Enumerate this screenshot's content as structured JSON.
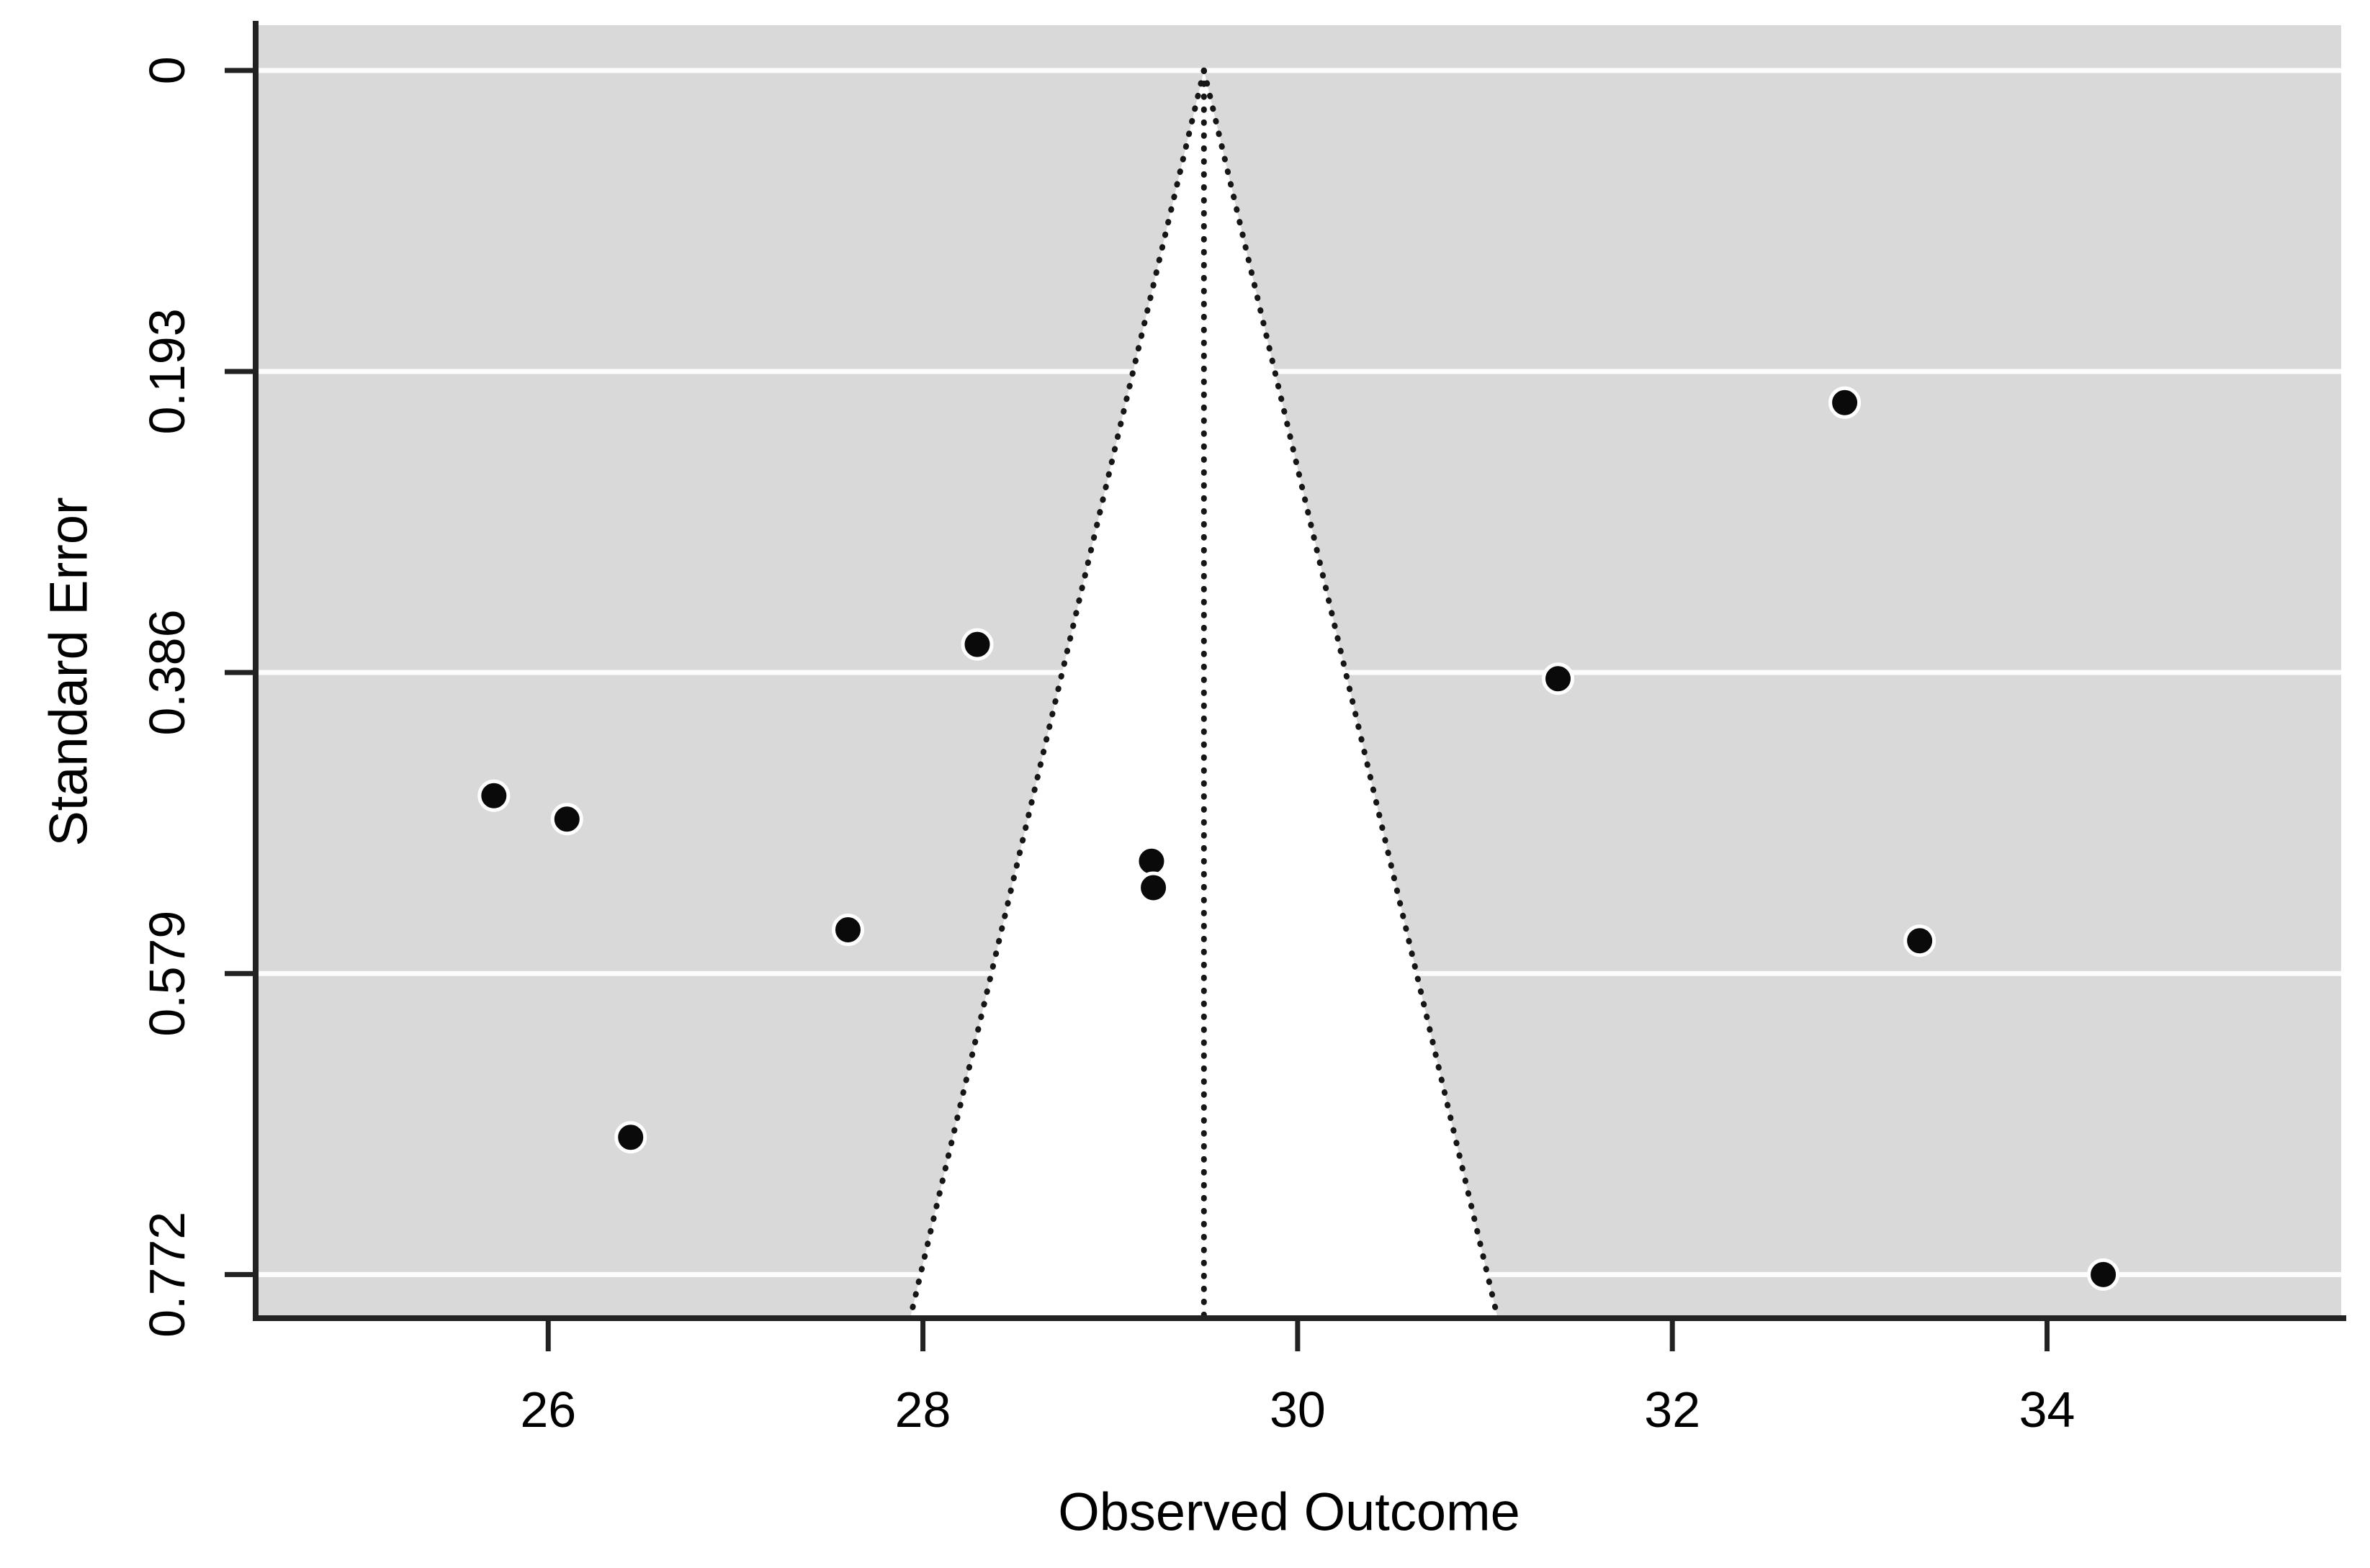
{
  "figure": {
    "kind": "meta-analysis funnel plot",
    "background": "#ffffff"
  },
  "chart_data": {
    "type": "scatter",
    "variant": "funnel-plot",
    "title": "",
    "xlabel": "Observed Outcome",
    "ylabel": "Standard Error",
    "x_ticks": [
      26,
      28,
      30,
      32,
      34
    ],
    "y_ticks": [
      0,
      0.193,
      0.386,
      0.579,
      0.772
    ],
    "x_range_shown": [
      24.45,
      35.57
    ],
    "se_range_shown": [
      -0.029,
      0.8
    ],
    "y_axis_note": "standard error increases downward, 0 at top",
    "grid": true,
    "legend": false,
    "funnel": {
      "estimate": 29.5,
      "ci_z": 1.96,
      "se_at_base": 0.8,
      "fill": "#ffffff",
      "edge_style": "dotted"
    },
    "points": [
      {
        "x": 25.71,
        "se": 0.465
      },
      {
        "x": 26.1,
        "se": 0.48
      },
      {
        "x": 26.44,
        "se": 0.684
      },
      {
        "x": 27.6,
        "se": 0.551
      },
      {
        "x": 28.29,
        "se": 0.368
      },
      {
        "x": 29.22,
        "se": 0.507
      },
      {
        "x": 29.23,
        "se": 0.524
      },
      {
        "x": 31.39,
        "se": 0.39
      },
      {
        "x": 32.92,
        "se": 0.213
      },
      {
        "x": 33.32,
        "se": 0.558
      },
      {
        "x": 34.3,
        "se": 0.772
      }
    ],
    "colors": {
      "panel": "#d9d9d9",
      "gridline": "#fcfcfc",
      "axis": "#222222",
      "tick": "#222222",
      "text": "#000000",
      "point_fill": "#0a0a0a",
      "point_halo": "#ffffff",
      "dotted_line": "#161616",
      "funnel_fill": "#ffffff"
    }
  }
}
